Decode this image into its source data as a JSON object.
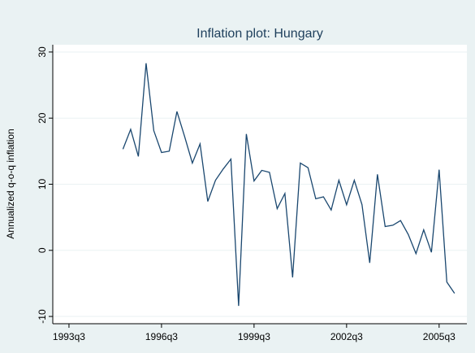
{
  "chart_data": {
    "type": "line",
    "title": "Inflation plot: Hungary",
    "y_label": "Annualized q-o-q inflation",
    "x": [
      141,
      142,
      143,
      144,
      145,
      146,
      147,
      148,
      149,
      150,
      151,
      152,
      153,
      154,
      155,
      156,
      157,
      158,
      159,
      160,
      161,
      162,
      163,
      164,
      165,
      166,
      167,
      168,
      169,
      170,
      171,
      172,
      173,
      174,
      175,
      176,
      177,
      178,
      179,
      180,
      181,
      182,
      183,
      184
    ],
    "series": [
      {
        "color": "#1a476f",
        "values": [
          15.3,
          18.3,
          14.2,
          28.3,
          18.1,
          14.8,
          15.0,
          21.0,
          17.2,
          13.2,
          16.1,
          7.4,
          10.6,
          12.3,
          13.8,
          -8.4,
          17.6,
          10.5,
          12.1,
          11.8,
          6.3,
          8.6,
          -4.1,
          13.2,
          12.5,
          7.8,
          8.1,
          6.1,
          10.6,
          6.9,
          10.6,
          6.9,
          -1.9,
          11.5,
          3.6,
          3.8,
          4.5,
          2.4,
          -0.5,
          3.1,
          -0.3,
          12.2,
          -4.8,
          -6.5
        ]
      }
    ],
    "xlim": [
      131.9,
      185.6
    ],
    "xticks": [
      {
        "value": 134,
        "label": "1993q3"
      },
      {
        "value": 146,
        "label": "1996q3"
      },
      {
        "value": 158,
        "label": "1999q3"
      },
      {
        "value": 170,
        "label": "2002q3"
      },
      {
        "value": 182,
        "label": "2005q3"
      }
    ],
    "ylim": [
      -11.1,
      31.1
    ],
    "yticks": [
      -10,
      0,
      10,
      20,
      30
    ],
    "grid": true
  }
}
